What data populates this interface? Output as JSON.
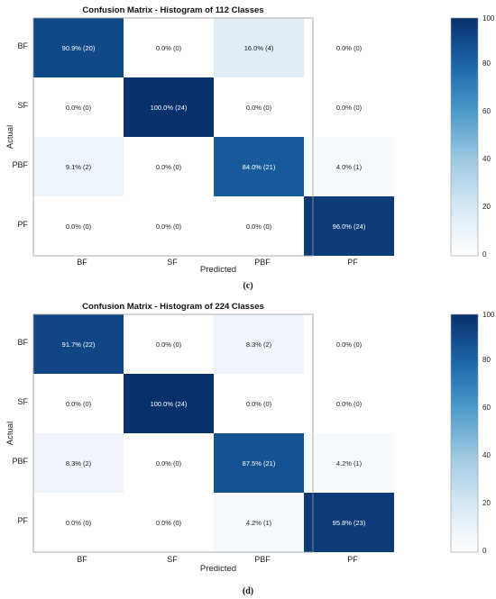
{
  "chart_data": [
    {
      "type": "heatmap",
      "title": "Confusion Matrix - Histogram of 112 Classes",
      "panel_label": "(c)",
      "xlabel": "Predicted",
      "ylabel": "Actual",
      "x_categories": [
        "BF",
        "SF",
        "PBF",
        "PF"
      ],
      "y_categories": [
        "BF",
        "SF",
        "PBF",
        "PF"
      ],
      "values": [
        [
          90.9,
          0.0,
          16.0,
          0.0
        ],
        [
          0.0,
          100.0,
          0.0,
          0.0
        ],
        [
          9.1,
          0.0,
          84.0,
          4.0
        ],
        [
          0.0,
          0.0,
          0.0,
          96.0
        ]
      ],
      "labels": [
        [
          "90.9% (20)",
          "0.0% (0)",
          "16.0% (4)",
          "0.0% (0)"
        ],
        [
          "0.0% (0)",
          "100.0% (24)",
          "0.0% (0)",
          "0.0% (0)"
        ],
        [
          "9.1% (2)",
          "0.0% (0)",
          "84.0% (21)",
          "4.0% (1)"
        ],
        [
          "0.0% (0)",
          "0.0% (0)",
          "0.0% (0)",
          "96.0% (24)"
        ]
      ],
      "colorbar": {
        "range": [
          0,
          100
        ],
        "ticks": [
          "0",
          "20",
          "40",
          "60",
          "80",
          "100"
        ],
        "colormap": "blues"
      }
    },
    {
      "type": "heatmap",
      "title": "Confusion Matrix - Histogram of 224 Classes",
      "panel_label": "(d)",
      "xlabel": "Predicted",
      "ylabel": "Actual",
      "x_categories": [
        "BF",
        "SF",
        "PBF",
        "PF"
      ],
      "y_categories": [
        "BF",
        "SF",
        "PBF",
        "PF"
      ],
      "values": [
        [
          91.7,
          0.0,
          8.3,
          0.0
        ],
        [
          0.0,
          100.0,
          0.0,
          0.0
        ],
        [
          8.3,
          0.0,
          87.5,
          4.2
        ],
        [
          0.0,
          0.0,
          4.2,
          95.8
        ]
      ],
      "labels": [
        [
          "91.7% (22)",
          "0.0% (0)",
          "8.3% (2)",
          "0.0% (0)"
        ],
        [
          "0.0% (0)",
          "100.0% (24)",
          "0.0% (0)",
          "0.0% (0)"
        ],
        [
          "8.3% (2)",
          "0.0% (0)",
          "87.5% (21)",
          "4.2% (1)"
        ],
        [
          "0.0% (0)",
          "0.0% (0)",
          "4.2% (1)",
          "95.8% (23)"
        ]
      ],
      "colorbar": {
        "range": [
          0,
          100
        ],
        "ticks": [
          "0",
          "20",
          "40",
          "60",
          "80",
          "100"
        ],
        "colormap": "blues"
      }
    }
  ]
}
